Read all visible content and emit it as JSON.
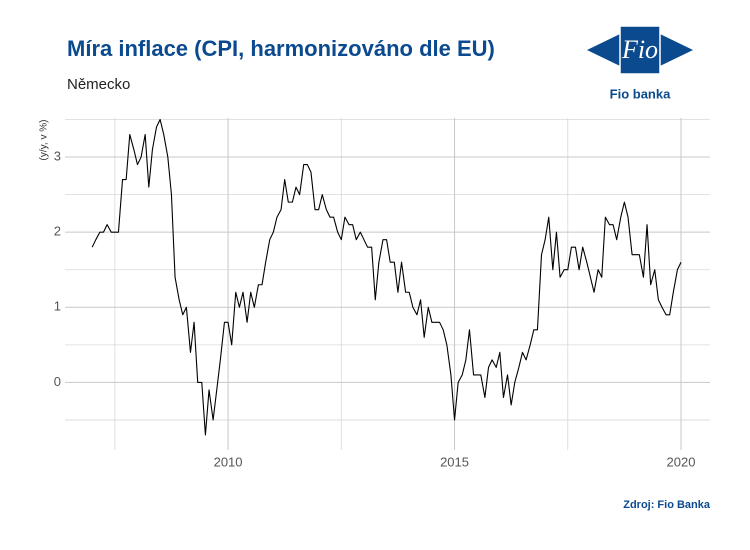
{
  "chart_data": {
    "type": "line",
    "title": "Míra inflace (CPI, harmonizováno dle EU)",
    "subtitle": "Německo",
    "y_label": "(y/y, v %)",
    "source": "Zdroj: Fio Banka",
    "color": "#000000",
    "grid": true,
    "xlim": [
      2006.4,
      2020.64
    ],
    "ylim": [
      -0.9,
      3.52
    ],
    "xticks": [
      2010,
      2015,
      2020
    ],
    "xminor": [
      2007.5,
      2012.5,
      2017.5
    ],
    "yticks": [
      0,
      1,
      2,
      3
    ],
    "yminor": [
      -0.5,
      0.5,
      1.5,
      2.5,
      3.5
    ],
    "x": [
      2007.0,
      2007.08,
      2007.17,
      2007.25,
      2007.33,
      2007.42,
      2007.5,
      2007.58,
      2007.67,
      2007.75,
      2007.83,
      2007.92,
      2008.0,
      2008.08,
      2008.17,
      2008.25,
      2008.33,
      2008.42,
      2008.5,
      2008.58,
      2008.67,
      2008.75,
      2008.83,
      2008.92,
      2009.0,
      2009.08,
      2009.17,
      2009.25,
      2009.33,
      2009.42,
      2009.5,
      2009.58,
      2009.67,
      2009.75,
      2009.83,
      2009.92,
      2010.0,
      2010.08,
      2010.17,
      2010.25,
      2010.33,
      2010.42,
      2010.5,
      2010.58,
      2010.67,
      2010.75,
      2010.83,
      2010.92,
      2011.0,
      2011.08,
      2011.17,
      2011.25,
      2011.33,
      2011.42,
      2011.5,
      2011.58,
      2011.67,
      2011.75,
      2011.83,
      2011.92,
      2012.0,
      2012.08,
      2012.17,
      2012.25,
      2012.33,
      2012.42,
      2012.5,
      2012.58,
      2012.67,
      2012.75,
      2012.83,
      2012.92,
      2013.0,
      2013.08,
      2013.17,
      2013.25,
      2013.33,
      2013.42,
      2013.5,
      2013.58,
      2013.67,
      2013.75,
      2013.83,
      2013.92,
      2014.0,
      2014.08,
      2014.17,
      2014.25,
      2014.33,
      2014.42,
      2014.5,
      2014.58,
      2014.67,
      2014.75,
      2014.83,
      2014.92,
      2015.0,
      2015.08,
      2015.17,
      2015.25,
      2015.33,
      2015.42,
      2015.5,
      2015.58,
      2015.67,
      2015.75,
      2015.83,
      2015.92,
      2016.0,
      2016.08,
      2016.17,
      2016.25,
      2016.33,
      2016.42,
      2016.5,
      2016.58,
      2016.67,
      2016.75,
      2016.83,
      2016.92,
      2017.0,
      2017.08,
      2017.17,
      2017.25,
      2017.33,
      2017.42,
      2017.5,
      2017.58,
      2017.67,
      2017.75,
      2017.83,
      2017.92,
      2018.0,
      2018.08,
      2018.17,
      2018.25,
      2018.33,
      2018.42,
      2018.5,
      2018.58,
      2018.67,
      2018.75,
      2018.83,
      2018.92,
      2019.0,
      2019.08,
      2019.17,
      2019.25,
      2019.33,
      2019.42,
      2019.5,
      2019.58,
      2019.67,
      2019.75,
      2019.83,
      2019.92,
      2020.0
    ],
    "values": [
      1.8,
      1.9,
      2.0,
      2.0,
      2.1,
      2.0,
      2.0,
      2.0,
      2.7,
      2.7,
      3.3,
      3.1,
      2.9,
      3.0,
      3.3,
      2.6,
      3.1,
      3.4,
      3.5,
      3.3,
      3.0,
      2.5,
      1.4,
      1.1,
      0.9,
      1.0,
      0.4,
      0.8,
      0.0,
      0.0,
      -0.7,
      -0.1,
      -0.5,
      -0.1,
      0.3,
      0.8,
      0.8,
      0.5,
      1.2,
      1.0,
      1.2,
      0.8,
      1.2,
      1.0,
      1.3,
      1.3,
      1.6,
      1.9,
      2.0,
      2.2,
      2.3,
      2.7,
      2.4,
      2.4,
      2.6,
      2.5,
      2.9,
      2.9,
      2.8,
      2.3,
      2.3,
      2.5,
      2.3,
      2.2,
      2.2,
      2.0,
      1.9,
      2.2,
      2.1,
      2.1,
      1.9,
      2.0,
      1.9,
      1.8,
      1.8,
      1.1,
      1.6,
      1.9,
      1.9,
      1.6,
      1.6,
      1.2,
      1.6,
      1.2,
      1.2,
      1.0,
      0.9,
      1.1,
      0.6,
      1.0,
      0.8,
      0.8,
      0.8,
      0.7,
      0.5,
      0.1,
      -0.5,
      0.0,
      0.1,
      0.3,
      0.7,
      0.1,
      0.1,
      0.1,
      -0.2,
      0.2,
      0.3,
      0.2,
      0.4,
      -0.2,
      0.1,
      -0.3,
      0.0,
      0.2,
      0.4,
      0.3,
      0.5,
      0.7,
      0.7,
      1.7,
      1.9,
      2.2,
      1.5,
      2.0,
      1.4,
      1.5,
      1.5,
      1.8,
      1.8,
      1.5,
      1.8,
      1.6,
      1.4,
      1.2,
      1.5,
      1.4,
      2.2,
      2.1,
      2.1,
      1.9,
      2.2,
      2.4,
      2.2,
      1.7,
      1.7,
      1.7,
      1.4,
      2.1,
      1.3,
      1.5,
      1.1,
      1.0,
      0.9,
      0.9,
      1.2,
      1.5,
      1.6
    ]
  },
  "logo": {
    "mark": "Fio",
    "name": "Fio banka"
  }
}
